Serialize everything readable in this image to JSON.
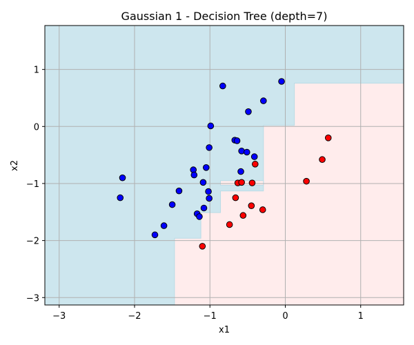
{
  "chart_data": {
    "type": "scatter",
    "title": "Gaussian 1 - Decision Tree (depth=7)",
    "xlabel": "x1",
    "ylabel": "x2",
    "xlim": [
      -3.19,
      1.57
    ],
    "ylim": [
      -3.13,
      1.77
    ],
    "xticks": [
      -3,
      -2,
      -1,
      0,
      1
    ],
    "yticks": [
      -3,
      -2,
      -1,
      0,
      1
    ],
    "xtick_labels": [
      "−3",
      "−2",
      "−1",
      "0",
      "1"
    ],
    "ytick_labels": [
      "−3",
      "−2",
      "−1",
      "0",
      "1"
    ],
    "grid": true,
    "colors": {
      "region_class_0": "#cde6ee",
      "region_class_1": "#ffecec",
      "boundary": "#b9dce6",
      "class_0": "#0000ff",
      "class_1": "#ff0000",
      "grid": "#b0b0b0",
      "marker_edge": "#000000"
    },
    "regions_class_1": [
      [
        [
          -1.47,
          -3.13
        ],
        [
          -1.47,
          -1.96
        ],
        [
          -1.12,
          -1.96
        ],
        [
          -1.12,
          -1.51
        ],
        [
          -0.86,
          -1.51
        ],
        [
          -0.86,
          -1.13
        ],
        [
          -0.29,
          -1.13
        ],
        [
          -0.29,
          -0.87
        ],
        [
          -0.29,
          -0.87
        ],
        [
          -0.29,
          0.02
        ],
        [
          0.12,
          0.02
        ],
        [
          0.12,
          0.76
        ],
        [
          1.57,
          0.76
        ],
        [
          1.57,
          -3.13
        ]
      ],
      [
        [
          -0.86,
          -1.03
        ],
        [
          -0.29,
          -1.03
        ],
        [
          -0.29,
          -0.95
        ],
        [
          -0.86,
          -0.95
        ]
      ]
    ],
    "series": [
      {
        "class": 0,
        "points": [
          [
            -0.83,
            0.71
          ],
          [
            -0.05,
            0.79
          ],
          [
            -0.29,
            0.45
          ],
          [
            -0.49,
            0.26
          ],
          [
            -0.99,
            0.01
          ],
          [
            -0.67,
            -0.24
          ],
          [
            -0.64,
            -0.25
          ],
          [
            -1.01,
            -0.37
          ],
          [
            -0.58,
            -0.43
          ],
          [
            -0.51,
            -0.45
          ],
          [
            -0.41,
            -0.53
          ],
          [
            -1.22,
            -0.76
          ],
          [
            -1.05,
            -0.72
          ],
          [
            -1.21,
            -0.85
          ],
          [
            -0.59,
            -0.79
          ],
          [
            -2.16,
            -0.9
          ],
          [
            -1.02,
            -1.14
          ],
          [
            -1.09,
            -0.98
          ],
          [
            -1.41,
            -1.13
          ],
          [
            -2.19,
            -1.25
          ],
          [
            -1.01,
            -1.26
          ],
          [
            -1.5,
            -1.37
          ],
          [
            -1.08,
            -1.43
          ],
          [
            -1.17,
            -1.53
          ],
          [
            -1.14,
            -1.58
          ],
          [
            -1.61,
            -1.74
          ],
          [
            -1.73,
            -1.9
          ]
        ]
      },
      {
        "class": 1,
        "points": [
          [
            0.57,
            -0.2
          ],
          [
            0.49,
            -0.58
          ],
          [
            -0.4,
            -0.66
          ],
          [
            0.28,
            -0.96
          ],
          [
            -0.63,
            -0.99
          ],
          [
            -0.58,
            -0.98
          ],
          [
            -0.44,
            -0.99
          ],
          [
            -0.66,
            -1.25
          ],
          [
            -0.45,
            -1.39
          ],
          [
            -0.3,
            -1.46
          ],
          [
            -0.56,
            -1.56
          ],
          [
            -0.74,
            -1.72
          ],
          [
            -1.1,
            -2.1
          ]
        ]
      }
    ]
  }
}
